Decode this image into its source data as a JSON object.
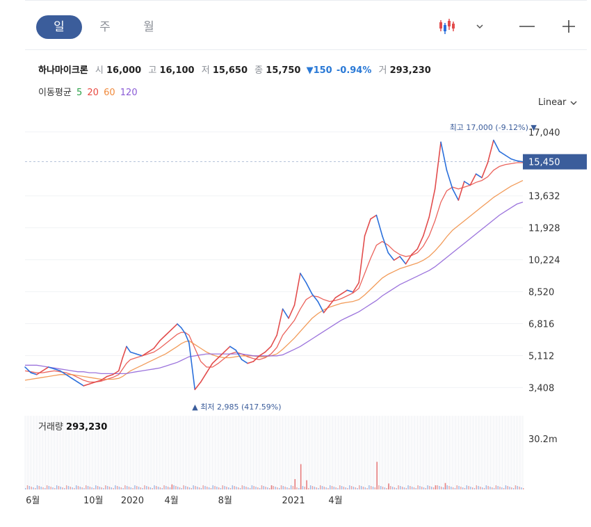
{
  "toolbar": {
    "tabs": [
      {
        "label": "일",
        "active": true
      },
      {
        "label": "주",
        "active": false
      },
      {
        "label": "월",
        "active": false
      }
    ],
    "chart_type_icon": "candlestick-icon",
    "dropdown_icon": "chevron-down-icon",
    "zoom_out_icon": "minus-icon",
    "zoom_in_icon": "plus-icon"
  },
  "info": {
    "name": "하나마이크론",
    "open_label": "시",
    "open": "16,000",
    "high_label": "고",
    "high": "16,100",
    "low_label": "저",
    "low": "15,650",
    "close_label": "종",
    "close": "15,750",
    "change": "▼150",
    "change_pct": "-0.94%",
    "volume_label": "거",
    "volume": "293,230"
  },
  "ma": {
    "label": "이동평균",
    "periods": [
      {
        "value": "5",
        "color": "#2ca24a"
      },
      {
        "value": "20",
        "color": "#e8483f"
      },
      {
        "value": "60",
        "color": "#f08a3c"
      },
      {
        "value": "120",
        "color": "#8a5bd6"
      }
    ]
  },
  "scale": {
    "label": "Linear"
  },
  "volume_panel": {
    "label": "거래량",
    "value": "293,230",
    "axis_label": "30.2m"
  },
  "colors": {
    "up": "#e24c4c",
    "down": "#2a6fdb",
    "accent": "#3b5d9b",
    "ma5": "#2ca24a",
    "ma20": "#e8483f",
    "ma60": "#f08a3c",
    "ma120": "#8a5bd6"
  },
  "chart_data": {
    "type": "line",
    "title": "",
    "y_ticks": [
      "17,040",
      "13,632",
      "11,928",
      "10,224",
      "8,520",
      "6,816",
      "5,112",
      "3,408"
    ],
    "ylim": [
      2200,
      17700
    ],
    "x_ticks": [
      "6월",
      "10월",
      "2020",
      "4월",
      "8월",
      "2021",
      "4월"
    ],
    "current_price": "15,450",
    "high_annotation": {
      "label": "최고",
      "value": "17,000 (-9.12%)",
      "arrow": "▼",
      "price": 17000
    },
    "low_annotation": {
      "label": "최저",
      "value": "2,985 (417.59%)",
      "arrow": "▲",
      "price": 2985
    },
    "x": [
      0,
      6,
      12,
      18,
      24,
      30,
      36,
      42,
      48,
      54,
      60,
      66,
      72,
      78,
      84,
      90,
      96,
      100,
      104,
      108,
      114,
      120,
      126,
      132,
      138,
      144,
      150,
      156,
      160,
      164,
      168,
      174,
      180,
      186,
      192,
      198,
      204,
      210,
      216,
      222,
      228,
      234,
      240,
      246,
      252,
      258,
      264,
      270,
      276,
      282,
      288,
      294,
      300,
      306,
      312,
      318,
      324,
      330,
      336,
      342,
      348,
      354,
      360,
      366,
      372,
      378,
      384,
      390,
      396,
      402,
      408,
      414,
      420,
      426,
      432,
      438,
      444,
      450,
      456,
      462,
      468,
      474,
      480,
      486,
      492,
      498,
      504,
      510
    ],
    "series": [
      {
        "name": "5",
        "values": [
          4500,
          4200,
          4100,
          4300,
          4500,
          4400,
          4300,
          4100,
          3900,
          3700,
          3500,
          3600,
          3700,
          3800,
          4000,
          4100,
          4300,
          5000,
          5600,
          5300,
          5200,
          5100,
          5300,
          5500,
          5900,
          6200,
          6500,
          6800,
          6600,
          6300,
          5800,
          3300,
          3700,
          4200,
          4700,
          5000,
          5300,
          5600,
          5400,
          4900,
          4700,
          4800,
          5100,
          5300,
          5600,
          6200,
          7600,
          7100,
          7800,
          9500,
          9000,
          8400,
          8000,
          7400,
          7800,
          8200,
          8400,
          8600,
          8500,
          9000,
          11500,
          12400,
          12600,
          11500,
          10600,
          10200,
          10400,
          10000,
          10500,
          10800,
          11500,
          12500,
          14000,
          16500,
          15000,
          14000,
          13400,
          14400,
          14200,
          14800,
          14600,
          15400,
          16600,
          16000,
          15800,
          15600,
          15500,
          15450
        ]
      },
      {
        "name": "20",
        "values": [
          4300,
          4250,
          4200,
          4200,
          4250,
          4300,
          4250,
          4200,
          4100,
          3950,
          3800,
          3700,
          3700,
          3750,
          3850,
          3950,
          4100,
          4400,
          4700,
          4900,
          5000,
          5100,
          5200,
          5300,
          5500,
          5750,
          6000,
          6250,
          6350,
          6350,
          6200,
          5500,
          4800,
          4500,
          4500,
          4700,
          4950,
          5200,
          5300,
          5200,
          5050,
          4950,
          4900,
          5000,
          5200,
          5550,
          6200,
          6600,
          7000,
          7600,
          8100,
          8300,
          8250,
          8100,
          8000,
          8050,
          8150,
          8300,
          8450,
          8700,
          9500,
          10300,
          11000,
          11200,
          11000,
          10700,
          10500,
          10400,
          10450,
          10600,
          10950,
          11500,
          12300,
          13300,
          13900,
          14100,
          14000,
          14100,
          14200,
          14350,
          14450,
          14650,
          15000,
          15200,
          15300,
          15350,
          15400,
          15400
        ]
      },
      {
        "name": "60",
        "values": [
          3800,
          3850,
          3900,
          3950,
          4000,
          4050,
          4100,
          4100,
          4100,
          4050,
          4000,
          3950,
          3900,
          3850,
          3850,
          3850,
          3900,
          4000,
          4150,
          4300,
          4450,
          4600,
          4750,
          4900,
          5050,
          5200,
          5400,
          5600,
          5750,
          5850,
          5900,
          5700,
          5500,
          5300,
          5150,
          5050,
          5000,
          5000,
          5050,
          5100,
          5100,
          5100,
          5050,
          5050,
          5100,
          5200,
          5450,
          5750,
          6050,
          6400,
          6750,
          7100,
          7350,
          7550,
          7700,
          7800,
          7900,
          7950,
          8000,
          8100,
          8350,
          8650,
          8950,
          9250,
          9450,
          9600,
          9750,
          9850,
          9950,
          10050,
          10200,
          10400,
          10700,
          11050,
          11450,
          11800,
          12050,
          12300,
          12550,
          12800,
          13050,
          13300,
          13550,
          13750,
          13950,
          14150,
          14300,
          14450
        ]
      },
      {
        "name": "120",
        "values": [
          4600,
          4600,
          4600,
          4550,
          4500,
          4450,
          4400,
          4350,
          4300,
          4250,
          4250,
          4200,
          4200,
          4150,
          4150,
          4150,
          4150,
          4150,
          4150,
          4200,
          4250,
          4300,
          4350,
          4400,
          4450,
          4550,
          4650,
          4750,
          4850,
          4950,
          5050,
          5100,
          5150,
          5200,
          5200,
          5200,
          5200,
          5200,
          5200,
          5200,
          5150,
          5100,
          5100,
          5100,
          5100,
          5100,
          5150,
          5300,
          5450,
          5600,
          5800,
          6000,
          6200,
          6400,
          6600,
          6800,
          7000,
          7150,
          7300,
          7450,
          7650,
          7850,
          8050,
          8300,
          8500,
          8700,
          8900,
          9050,
          9200,
          9350,
          9500,
          9650,
          9850,
          10100,
          10350,
          10600,
          10850,
          11100,
          11350,
          11600,
          11850,
          12100,
          12350,
          12600,
          12800,
          13000,
          13200,
          13300
        ]
      }
    ],
    "volume": {
      "ymax": 32000000,
      "spikes": [
        {
          "x": 150,
          "value": 2200000
        },
        {
          "x": 252,
          "value": 1800000
        },
        {
          "x": 276,
          "value": 4500000
        },
        {
          "x": 282,
          "value": 11000000
        },
        {
          "x": 288,
          "value": 4000000
        },
        {
          "x": 360,
          "value": 12000000
        },
        {
          "x": 372,
          "value": 2600000
        },
        {
          "x": 420,
          "value": 1800000
        },
        {
          "x": 430,
          "value": 2800000
        }
      ]
    }
  }
}
